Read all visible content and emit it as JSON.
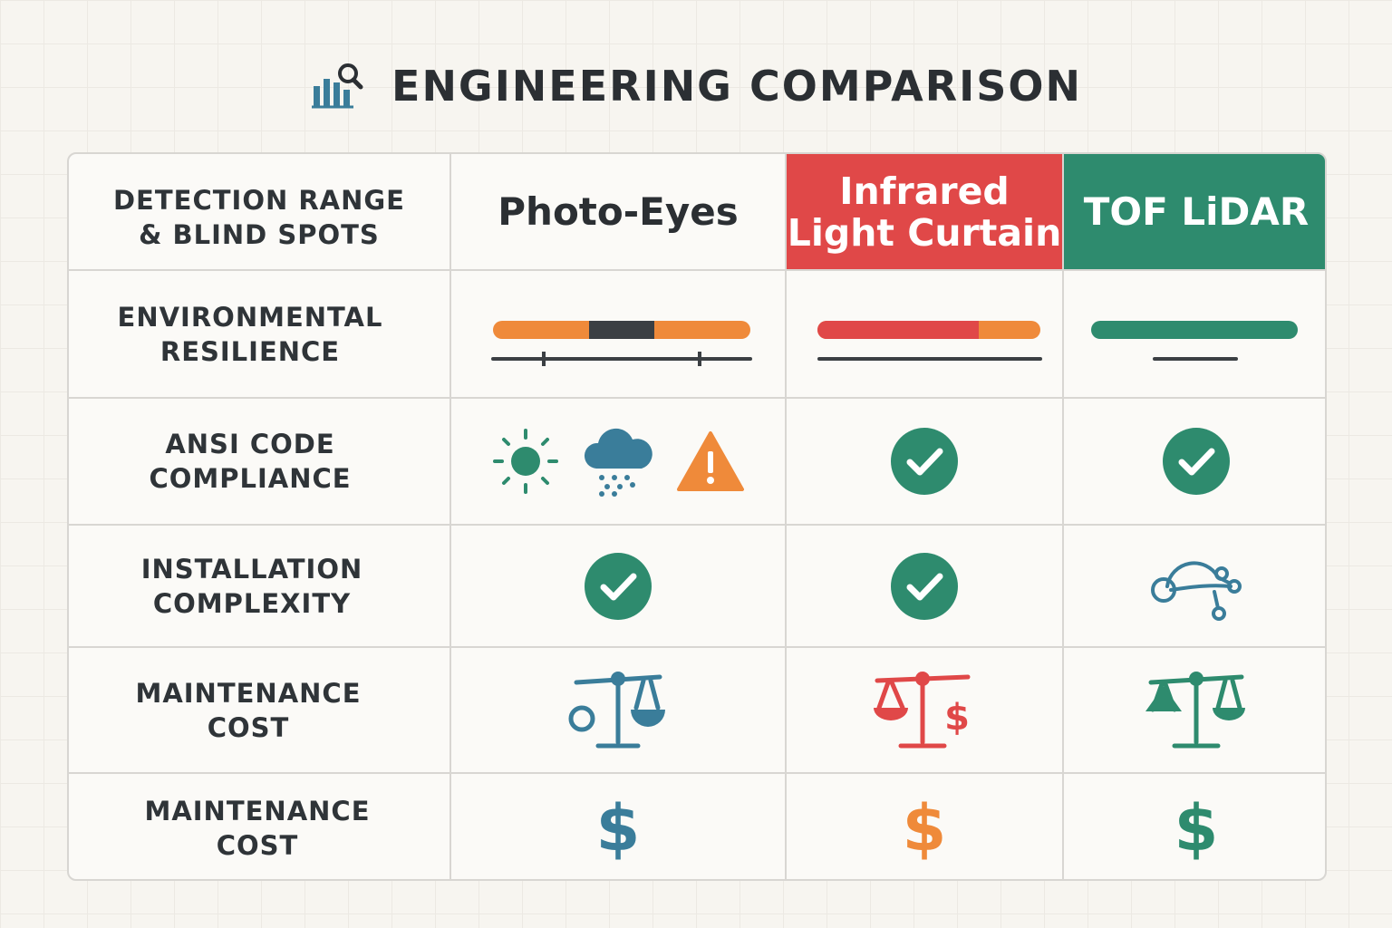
{
  "title": "ENGINEERING COMPARISON",
  "title_icon": "bar-chart-magnifier-icon",
  "colors": {
    "red": "#e04848",
    "green": "#2e8b6e",
    "orange": "#ef8a3a",
    "blue": "#3a7d9a",
    "dark": "#3b3f43"
  },
  "columns": [
    {
      "label": "Photo-Eyes",
      "header_color": ""
    },
    {
      "label": "Infrared\nLight Curtain",
      "header_color": "#e04848"
    },
    {
      "label": "TOF LiDAR",
      "header_color": "#2e8b6e"
    }
  ],
  "rows": [
    {
      "label": "DETECTION RANGE\n& BLIND SPOTS"
    },
    {
      "label": "ENVIRONMENTAL\nRESILIENCE",
      "cells": [
        "range-bar-orange-dark",
        "range-bar-red-orange",
        "range-bar-green"
      ]
    },
    {
      "label": "ANSI CODE\nCOMPLIANCE",
      "cells": [
        "sun-icon rain-cloud-icon warning-icon",
        "check-circle-icon",
        "check-circle-icon"
      ]
    },
    {
      "label": "INSTALLATION\nCOMPLEXITY",
      "cells": [
        "check-circle-icon",
        "check-circle-icon",
        "network-nodes-icon"
      ]
    },
    {
      "label": "MAINTENANCE\nCOST",
      "cells": [
        "balance-scale-icon",
        "balance-scale-dollar-icon",
        "balance-scale-icon"
      ]
    },
    {
      "label": "MAINTENANCE\nCOST",
      "cells": [
        "dollar-icon",
        "dollar-icon",
        "dollar-icon"
      ]
    }
  ],
  "dollar_symbol": "$"
}
